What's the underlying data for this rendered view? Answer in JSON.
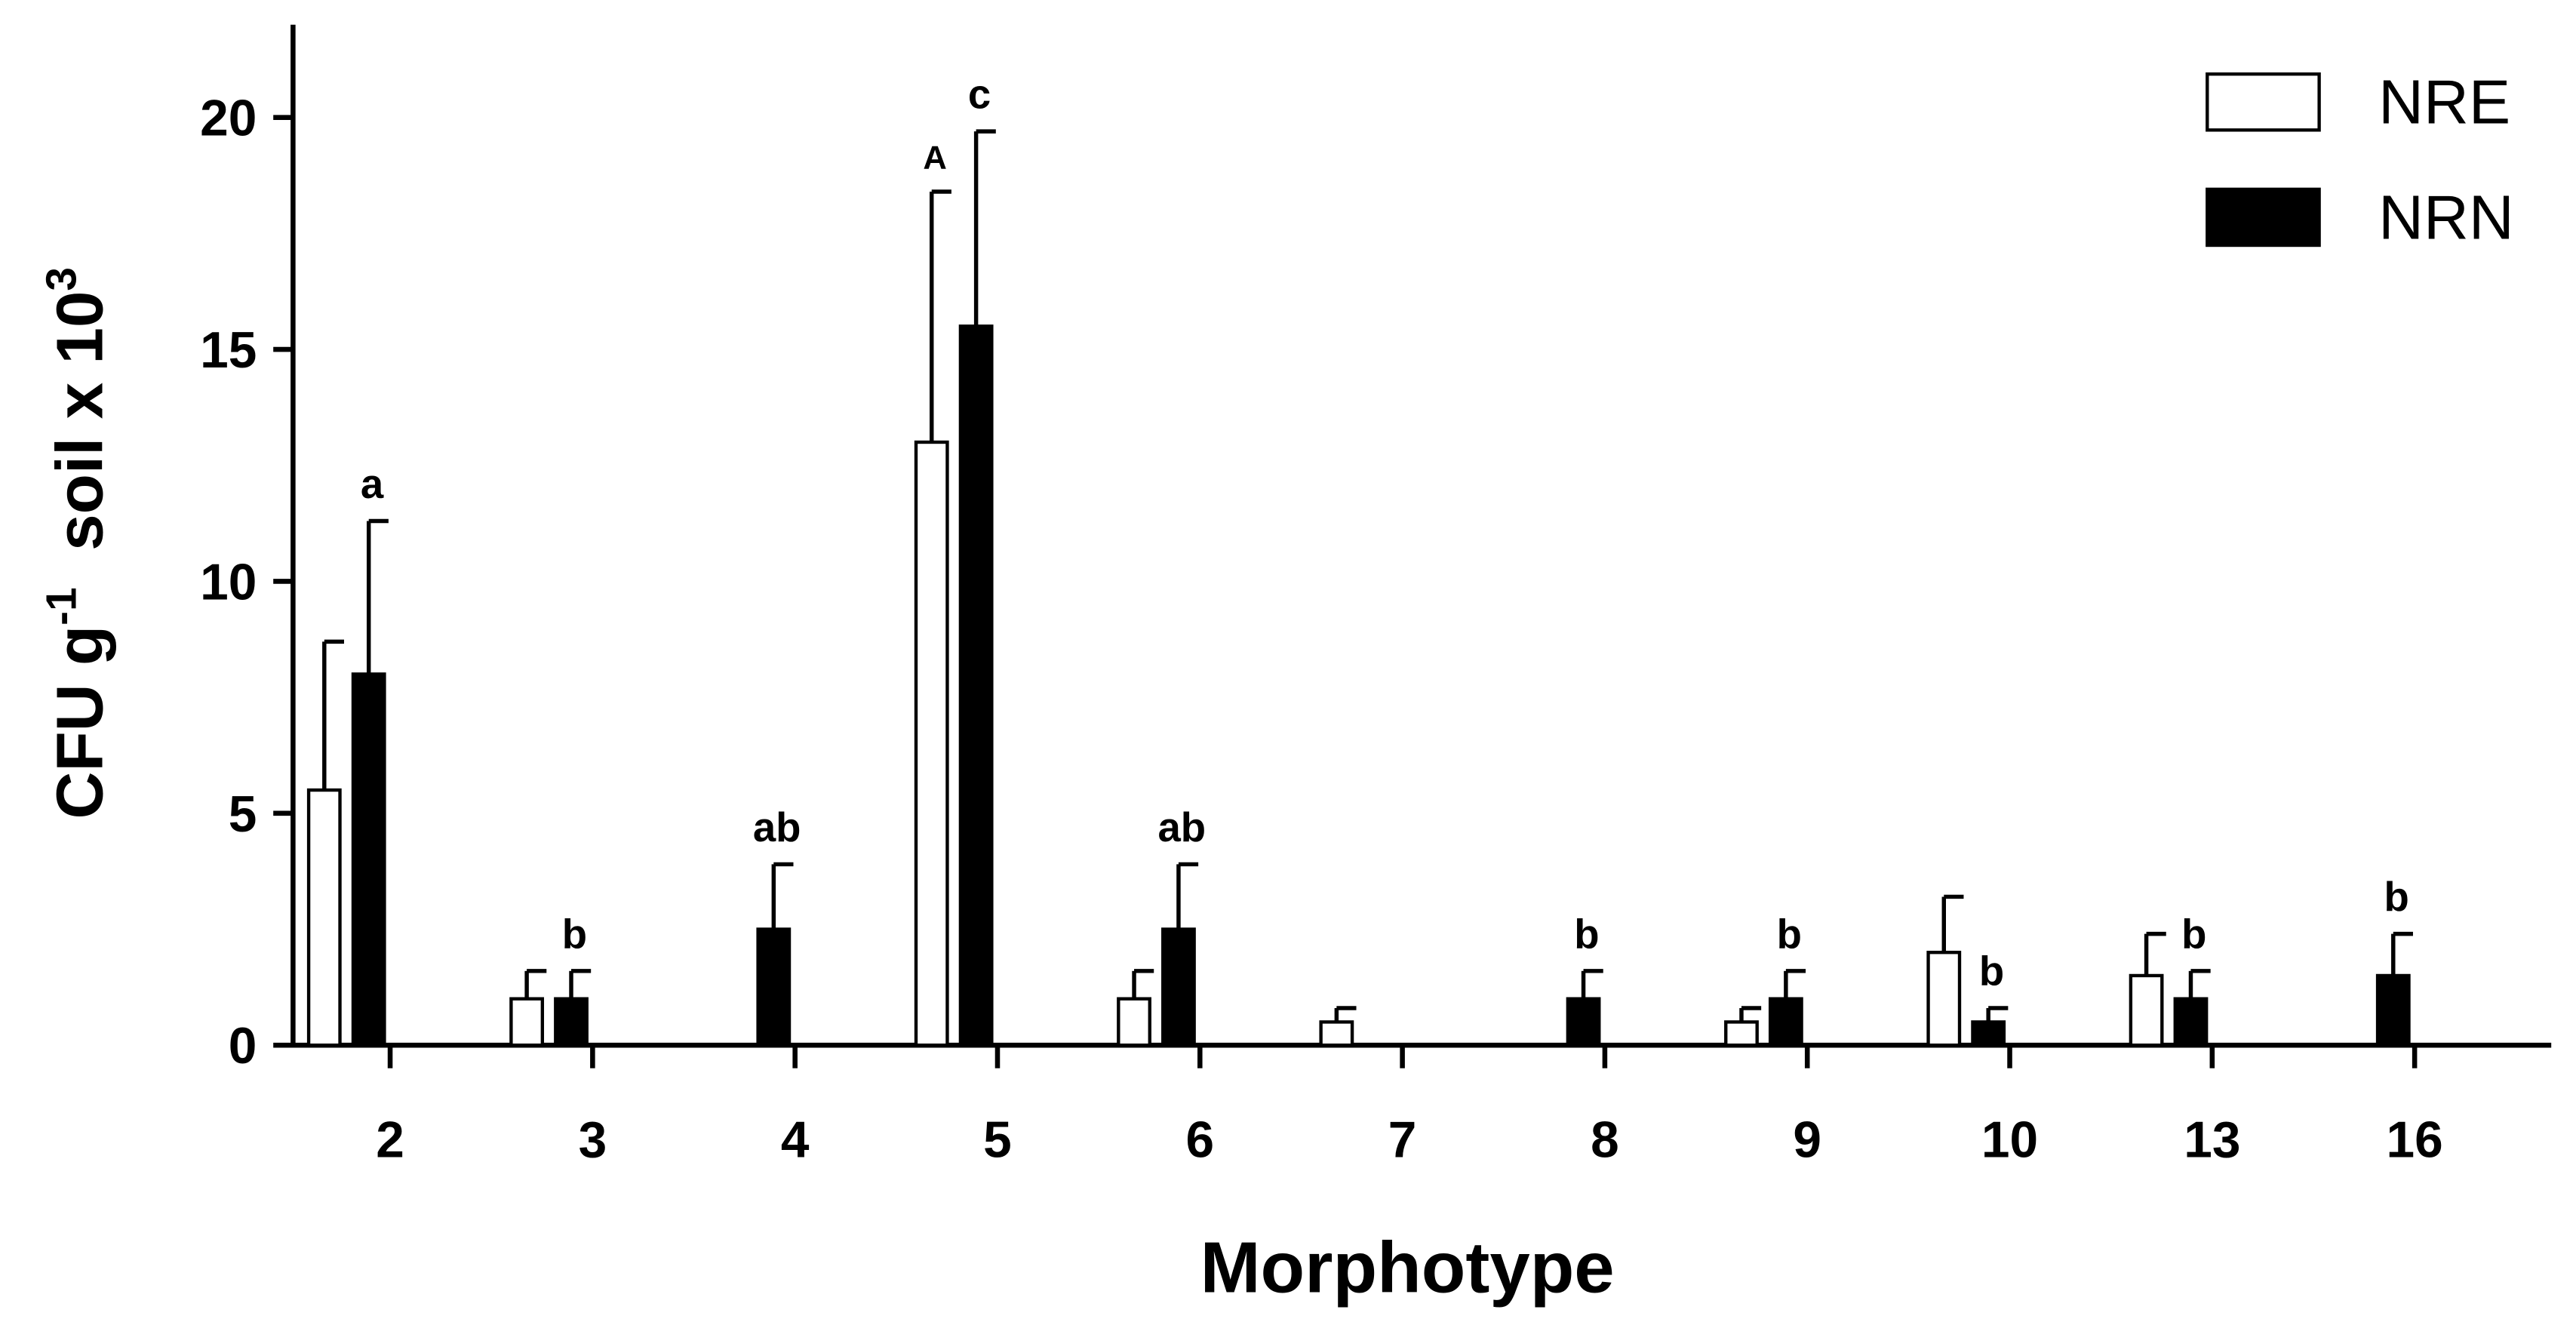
{
  "chart_data": {
    "type": "bar",
    "xlabel": "Morphotype",
    "ylabel_parts": [
      "CFU g",
      "-1",
      "  soil x 10",
      "3"
    ],
    "categories": [
      "2",
      "3",
      "4",
      "5",
      "6",
      "7",
      "8",
      "9",
      "10",
      "13",
      "16"
    ],
    "series": [
      {
        "name": "NRE",
        "color": "#ffffff",
        "values": [
          5.5,
          1,
          null,
          13,
          1,
          0.5,
          null,
          0.5,
          2,
          1.5,
          null
        ],
        "errors": [
          3.2,
          0.6,
          null,
          5.4,
          0.6,
          0.3,
          null,
          0.3,
          1.2,
          0.9,
          null
        ],
        "labels": [
          null,
          null,
          null,
          "A",
          null,
          null,
          null,
          null,
          null,
          null,
          null
        ]
      },
      {
        "name": "NRN",
        "color": "#000000",
        "values": [
          8,
          1,
          2.5,
          15.5,
          2.5,
          null,
          1,
          1,
          0.5,
          1,
          1.5
        ],
        "errors": [
          3.3,
          0.6,
          1.4,
          4.2,
          1.4,
          null,
          0.6,
          0.6,
          0.3,
          0.6,
          0.9
        ],
        "labels": [
          "a",
          "b",
          "ab",
          "c",
          "ab",
          null,
          "b",
          "b",
          "b",
          "b",
          "b"
        ]
      }
    ],
    "ylim": [
      0,
      22
    ],
    "yticks": [
      0,
      5,
      10,
      15,
      20
    ],
    "grid": false,
    "legend": "top-right"
  }
}
